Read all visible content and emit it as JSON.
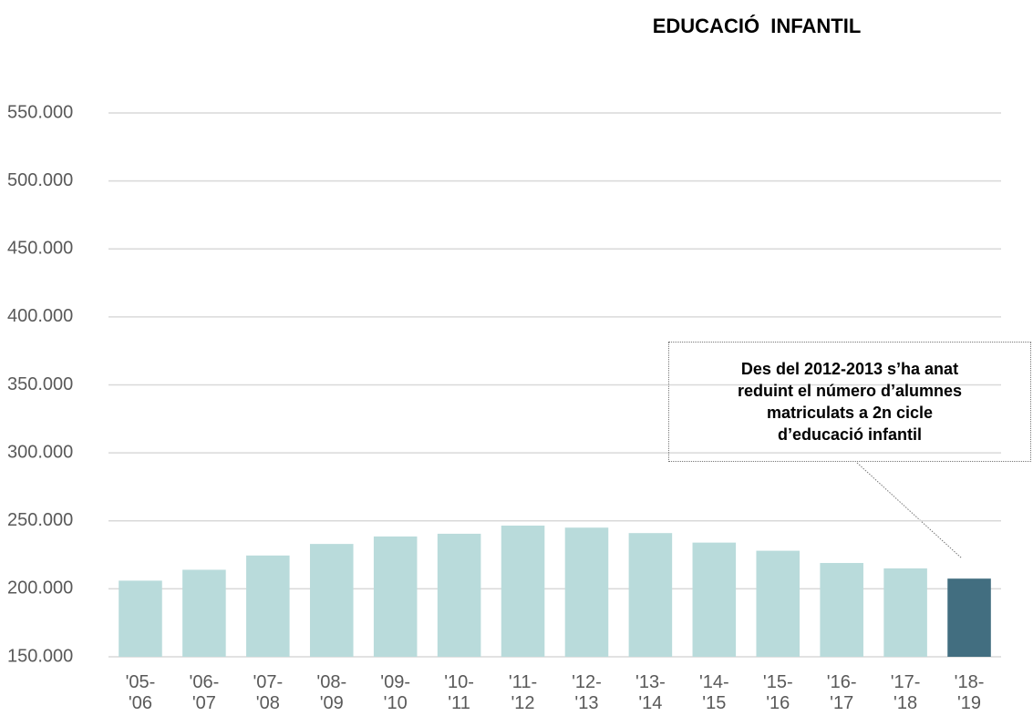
{
  "chart_data": {
    "type": "bar",
    "title": "EDUCACIÓ  INFANTIL",
    "annotation": "Des del 2012-2013 s’ha anat\nreduint el número d’alumnes\nmatriculats a 2n cicle\nd’educació infantil",
    "categories": [
      "'05-\n'06",
      "'06-\n'07",
      "'07-\n'08",
      "'08-\n'09",
      "'09-\n'10",
      "'10-\n'11",
      "'11-\n'12",
      "'12-\n'13",
      "'13-\n'14",
      "'14-\n'15",
      "'15-\n'16",
      "'16-\n'17",
      "'17-\n'18",
      "'18-\n'19"
    ],
    "values": [
      206000,
      214000,
      224500,
      233000,
      238500,
      240500,
      246500,
      245000,
      241000,
      234000,
      228000,
      219000,
      215000,
      207500
    ],
    "colors": [
      "#b9dbdb",
      "#b9dbdb",
      "#b9dbdb",
      "#b9dbdb",
      "#b9dbdb",
      "#b9dbdb",
      "#b9dbdb",
      "#b9dbdb",
      "#b9dbdb",
      "#b9dbdb",
      "#b9dbdb",
      "#b9dbdb",
      "#b9dbdb",
      "#426e80"
    ],
    "ylim": [
      150000,
      550000
    ],
    "yticks": [
      {
        "value": 150000,
        "label": "150.000"
      },
      {
        "value": 200000,
        "label": "200.000"
      },
      {
        "value": 250000,
        "label": "250.000"
      },
      {
        "value": 300000,
        "label": "300.000"
      },
      {
        "value": 350000,
        "label": "350.000"
      },
      {
        "value": 400000,
        "label": "400.000"
      },
      {
        "value": 450000,
        "label": "450.000"
      },
      {
        "value": 500000,
        "label": "500.000"
      },
      {
        "value": 550000,
        "label": "550.000"
      }
    ],
    "grid": true
  }
}
